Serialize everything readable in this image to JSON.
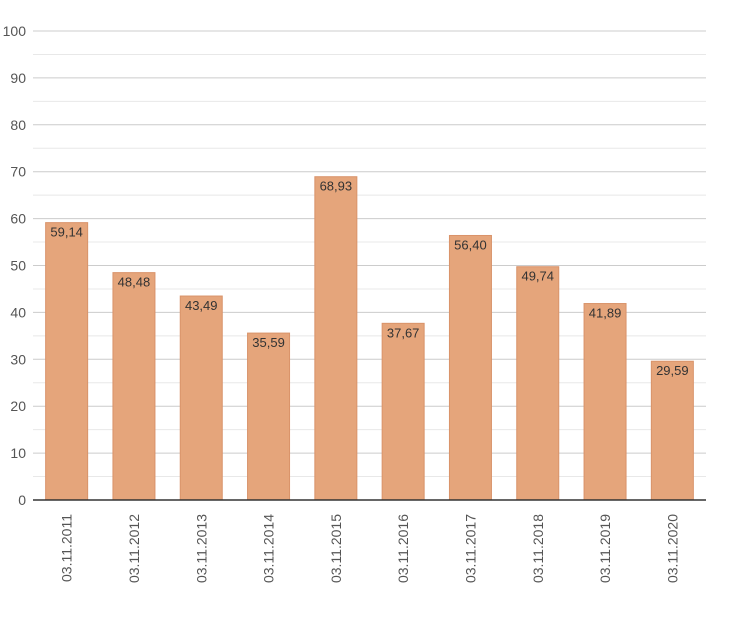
{
  "chart_data": {
    "type": "bar",
    "title": "",
    "xlabel": "",
    "ylabel": "",
    "categories": [
      "03.11.2011",
      "03.11.2012",
      "03.11.2013",
      "03.11.2014",
      "03.11.2015",
      "03.11.2016",
      "03.11.2017",
      "03.11.2018",
      "03.11.2019",
      "03.11.2020"
    ],
    "values": [
      59.14,
      48.48,
      43.49,
      35.59,
      68.93,
      37.67,
      56.4,
      49.74,
      41.89,
      29.59
    ],
    "data_labels": [
      "59,14",
      "48,48",
      "43,49",
      "35,59",
      "68,93",
      "37,67",
      "56,40",
      "49,74",
      "41,89",
      "29,59"
    ],
    "ylim": [
      0,
      100
    ],
    "yticks": [
      0,
      10,
      20,
      30,
      40,
      50,
      60,
      70,
      80,
      90,
      100
    ],
    "minor_grid": true,
    "grid": true,
    "legend": "none",
    "bar_color": "#e5a57b",
    "bar_border_color": "#d9936a",
    "grid_color": "#cccccc",
    "minor_grid_color": "#e8e8e8"
  }
}
